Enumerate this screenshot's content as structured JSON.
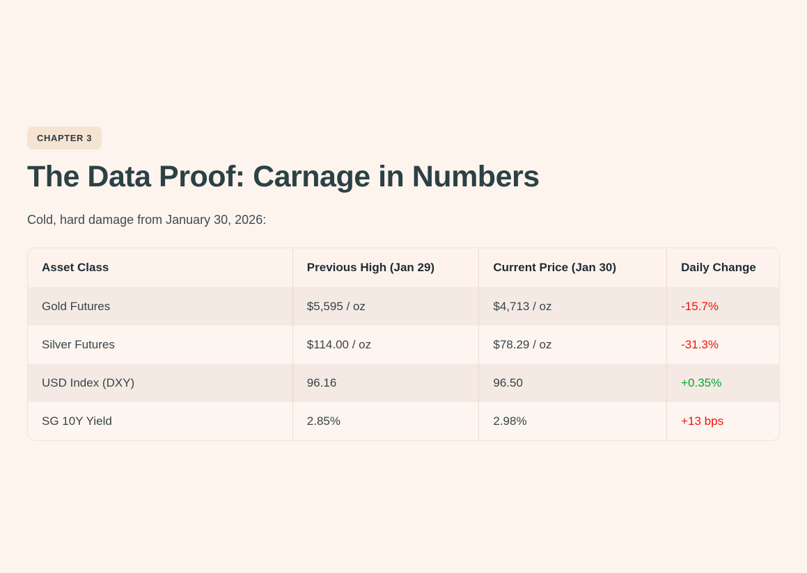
{
  "page": {
    "badge_label": "CHAPTER 3",
    "title": "The Data Proof: Carnage in Numbers",
    "subtitle": "Cold, hard damage from January 30, 2026:"
  },
  "colors": {
    "page_bg": "#fdf4ed",
    "badge_bg": "#f6e3d2",
    "title_text": "#2c4145",
    "row_stripe": "#f4eae3",
    "row_light": "#fdf5ef",
    "negative": "#f31112",
    "positive": "#00a632"
  },
  "table": {
    "columns": [
      "Asset Class",
      "Previous High (Jan 29)",
      "Current Price (Jan 30)",
      "Daily Change"
    ],
    "rows": [
      {
        "asset_class": "Gold Futures",
        "previous_high": "$5,595 / oz",
        "current_price": "$4,713 / oz",
        "daily_change": "-15.7%",
        "direction": "negative"
      },
      {
        "asset_class": "Silver Futures",
        "previous_high": "$114.00 / oz",
        "current_price": "$78.29 / oz",
        "daily_change": "-31.3%",
        "direction": "negative"
      },
      {
        "asset_class": "USD Index (DXY)",
        "previous_high": "96.16",
        "current_price": "96.50",
        "daily_change": "+0.35%",
        "direction": "positive"
      },
      {
        "asset_class": "SG 10Y Yield",
        "previous_high": "2.85%",
        "current_price": "2.98%",
        "daily_change": "+13 bps",
        "direction": "negative"
      }
    ]
  }
}
